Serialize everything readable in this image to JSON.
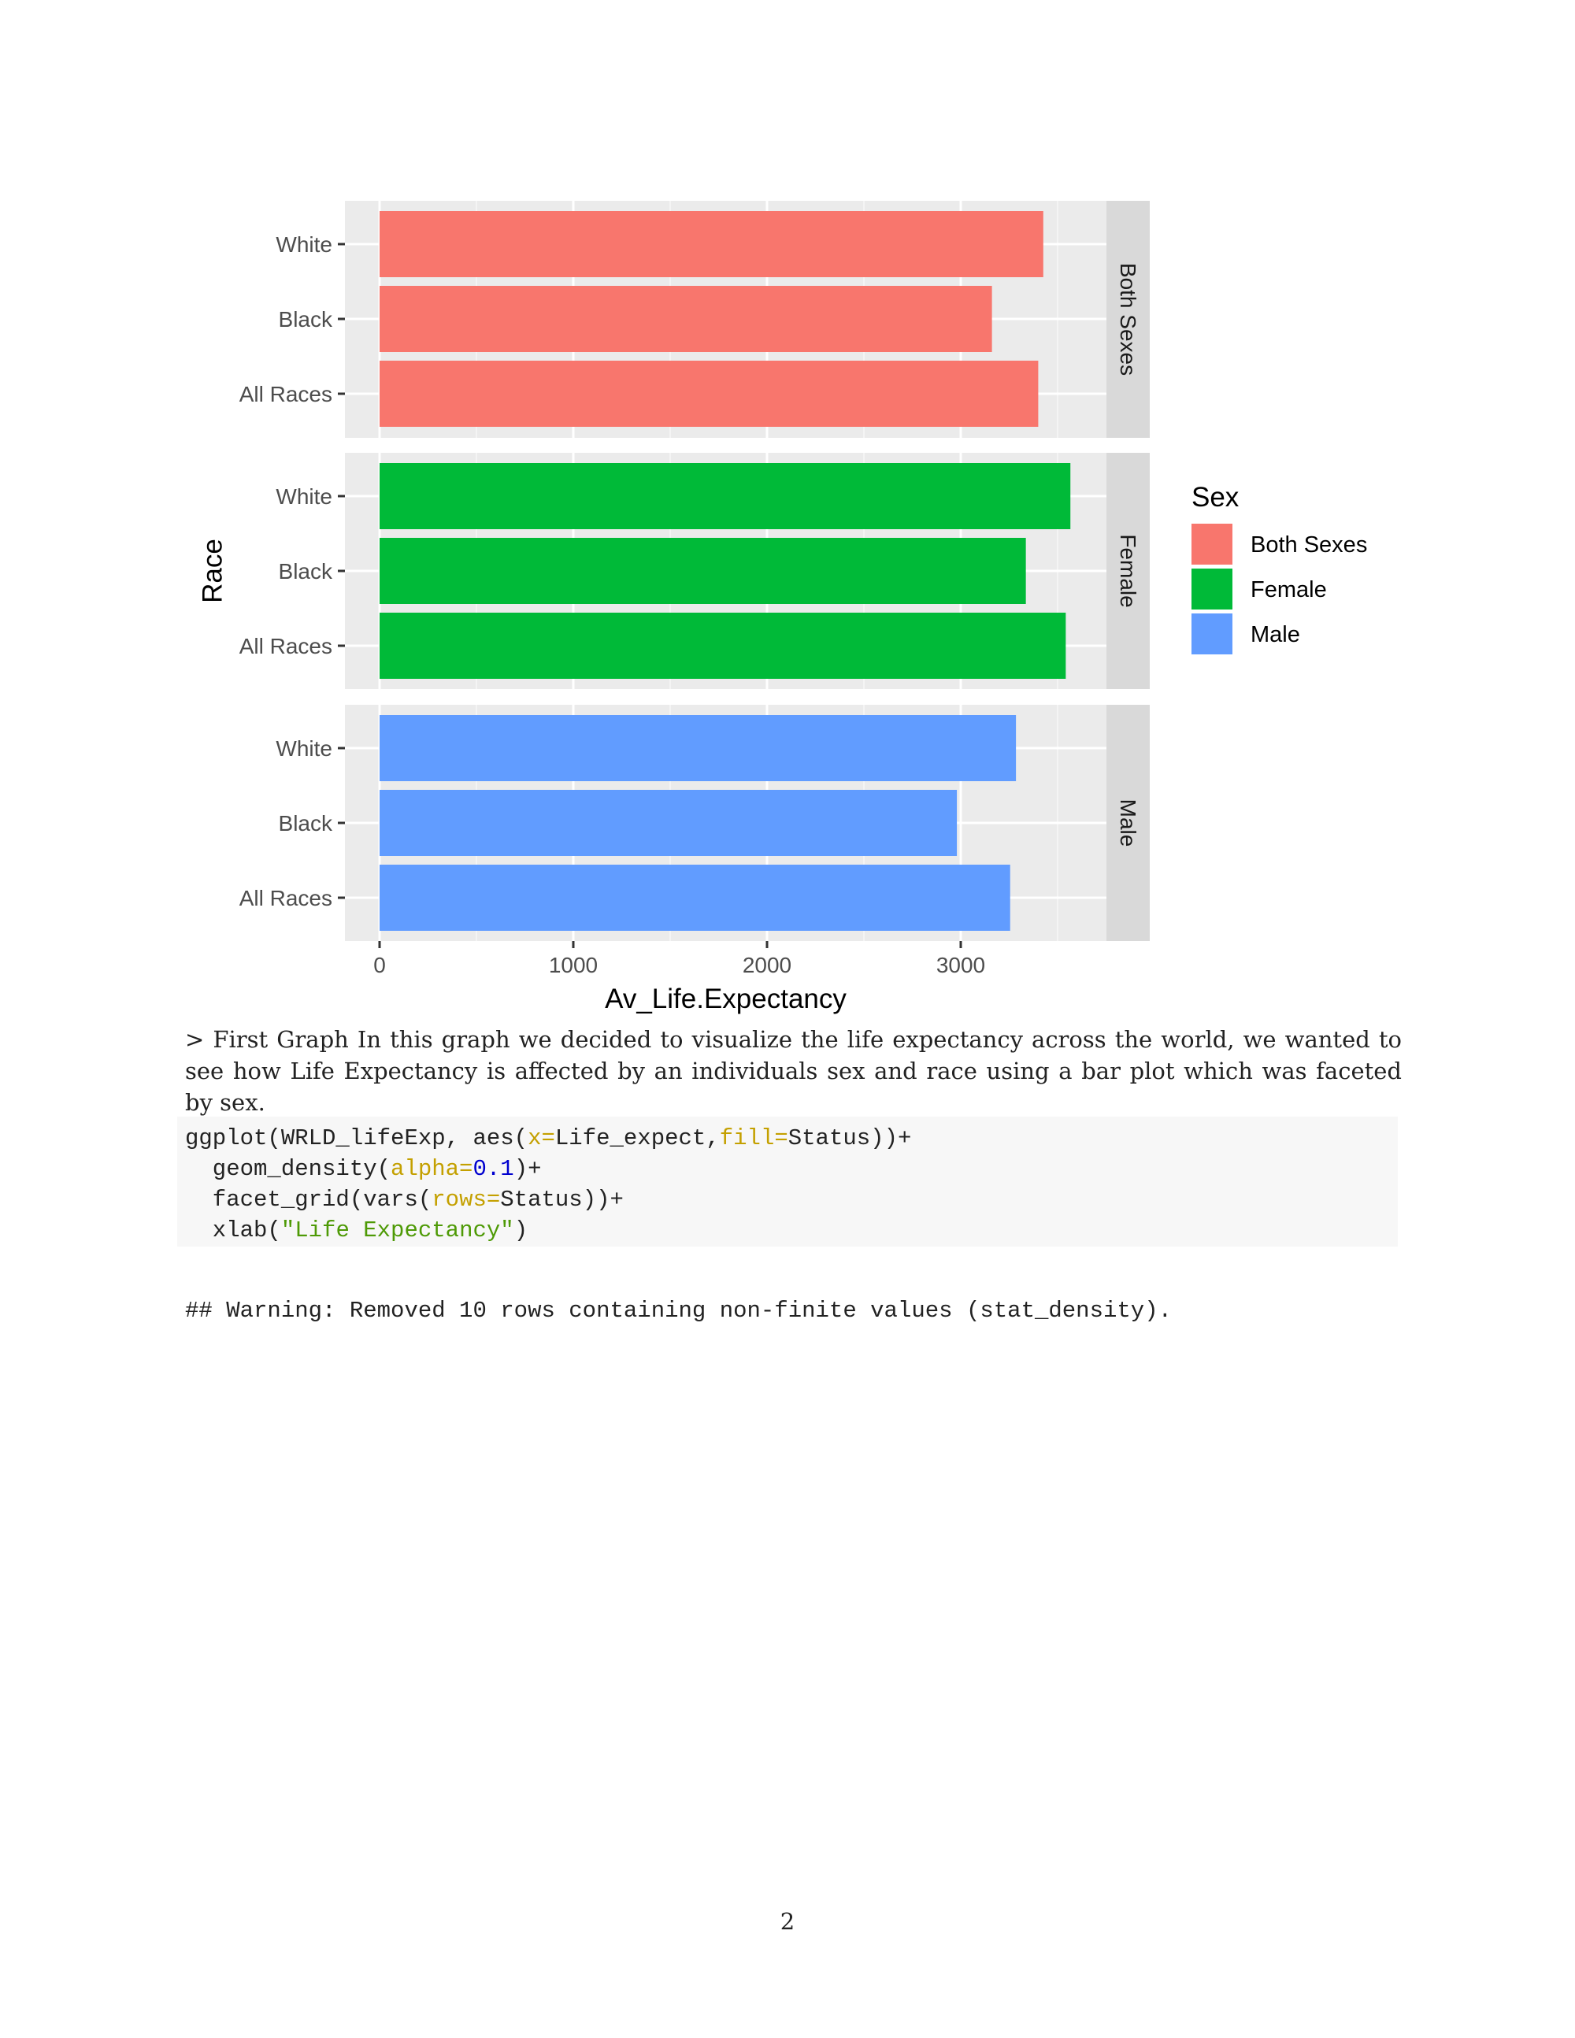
{
  "chart_data": {
    "type": "bar",
    "orientation": "horizontal",
    "xlabel": "Av_Life.Expectancy",
    "ylabel": "Race",
    "xlim": [
      0,
      3800
    ],
    "x_ticks": [
      0,
      1000,
      2000,
      3000
    ],
    "x_tick_labels": [
      "0",
      "1000",
      "2000",
      "3000"
    ],
    "facet_by": "Sex",
    "categories": [
      "White",
      "Black",
      "All Races"
    ],
    "grid": true,
    "legend": {
      "title": "Sex",
      "position": "right",
      "entries": [
        {
          "label": "Both Sexes",
          "color": "#F8766D"
        },
        {
          "label": "Female",
          "color": "#00BA38"
        },
        {
          "label": "Male",
          "color": "#619CFF"
        }
      ]
    },
    "series": [
      {
        "name": "Both Sexes",
        "facet_label": "Both Sexes",
        "color": "#F8766D",
        "values": [
          3426,
          3161,
          3400
        ]
      },
      {
        "name": "Female",
        "facet_label": "Female",
        "color": "#00BA38",
        "values": [
          3566,
          3336,
          3542
        ]
      },
      {
        "name": "Male",
        "facet_label": "Male",
        "color": "#619CFF",
        "values": [
          3285,
          2980,
          3255
        ]
      }
    ]
  },
  "prose": "> First Graph In this graph we decided to visualize the life expectancy across the world, we wanted to see how Life Expectancy is affected by an individuals sex and race using a bar plot which was faceted by sex.",
  "code": {
    "lines": [
      [
        {
          "t": "ggplot(WRLD_lifeExp, aes("
        },
        {
          "t": "x=",
          "c": "kw"
        },
        {
          "t": "Life_expect,"
        },
        {
          "t": "fill=",
          "c": "kw"
        },
        {
          "t": "Status))+"
        }
      ],
      [
        {
          "t": "  geom_density("
        },
        {
          "t": "alpha=",
          "c": "kw"
        },
        {
          "t": "0.1",
          "c": "num"
        },
        {
          "t": ")+"
        }
      ],
      [
        {
          "t": "  facet_grid(vars("
        },
        {
          "t": "rows=",
          "c": "kw"
        },
        {
          "t": "Status))+"
        }
      ],
      [
        {
          "t": "  xlab("
        },
        {
          "t": "\"Life Expectancy\"",
          "c": "str"
        },
        {
          "t": ")"
        }
      ]
    ]
  },
  "warning": "## Warning: Removed 10 rows containing non-finite values (stat_density).",
  "page_number": "2"
}
